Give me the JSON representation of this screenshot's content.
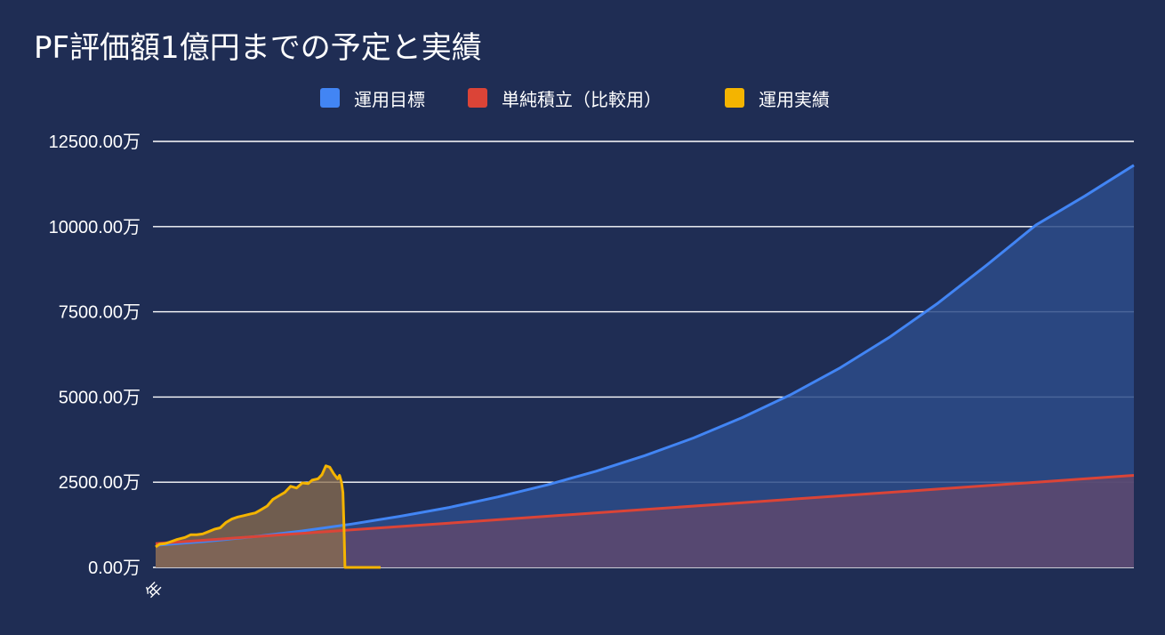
{
  "chart_data": {
    "type": "area",
    "title": "PF評価額1億円までの予定と実績",
    "xlabel": "",
    "ylabel": "",
    "x_tick_labels": [
      "年"
    ],
    "y_ticks": [
      "0.00万",
      "2500.00万",
      "5000.00万",
      "7500.00万",
      "10000.00万",
      "12500.00万"
    ],
    "ylim": [
      0,
      12500
    ],
    "y_unit": "万",
    "grid": true,
    "legend_position": "top",
    "series": [
      {
        "name": "運用目標",
        "color": "#4285f4",
        "fill": "#2d4c8a",
        "points": [
          [
            0,
            650
          ],
          [
            0.05,
            760
          ],
          [
            0.1,
            900
          ],
          [
            0.15,
            1070
          ],
          [
            0.2,
            1270
          ],
          [
            0.25,
            1500
          ],
          [
            0.3,
            1760
          ],
          [
            0.35,
            2070
          ],
          [
            0.4,
            2420
          ],
          [
            0.45,
            2820
          ],
          [
            0.5,
            3280
          ],
          [
            0.55,
            3800
          ],
          [
            0.6,
            4400
          ],
          [
            0.65,
            5080
          ],
          [
            0.7,
            5860
          ],
          [
            0.75,
            6750
          ],
          [
            0.8,
            7760
          ],
          [
            0.85,
            8880
          ],
          [
            0.9,
            10050
          ],
          [
            0.95,
            10900
          ],
          [
            1.0,
            11800
          ]
        ]
      },
      {
        "name": "単純積立（比較用）",
        "color": "#db4437",
        "fill": "#5e496e",
        "points": [
          [
            0,
            700
          ],
          [
            0.1,
            900
          ],
          [
            0.2,
            1100
          ],
          [
            0.3,
            1300
          ],
          [
            0.4,
            1500
          ],
          [
            0.5,
            1700
          ],
          [
            0.6,
            1900
          ],
          [
            0.7,
            2100
          ],
          [
            0.8,
            2300
          ],
          [
            0.9,
            2500
          ],
          [
            1.0,
            2700
          ]
        ]
      },
      {
        "name": "運用実績",
        "color": "#f4b400",
        "fill": "#8c6d4d",
        "points": [
          [
            0,
            600
          ],
          [
            0.004,
            680
          ],
          [
            0.01,
            700
          ],
          [
            0.016,
            760
          ],
          [
            0.022,
            820
          ],
          [
            0.03,
            880
          ],
          [
            0.036,
            960
          ],
          [
            0.042,
            960
          ],
          [
            0.048,
            980
          ],
          [
            0.054,
            1050
          ],
          [
            0.06,
            1120
          ],
          [
            0.066,
            1160
          ],
          [
            0.072,
            1320
          ],
          [
            0.078,
            1420
          ],
          [
            0.084,
            1480
          ],
          [
            0.09,
            1520
          ],
          [
            0.096,
            1560
          ],
          [
            0.102,
            1600
          ],
          [
            0.108,
            1700
          ],
          [
            0.114,
            1800
          ],
          [
            0.12,
            2000
          ],
          [
            0.126,
            2100
          ],
          [
            0.132,
            2200
          ],
          [
            0.138,
            2380
          ],
          [
            0.144,
            2330
          ],
          [
            0.15,
            2480
          ],
          [
            0.156,
            2460
          ],
          [
            0.16,
            2560
          ],
          [
            0.166,
            2600
          ],
          [
            0.17,
            2720
          ],
          [
            0.174,
            2980
          ],
          [
            0.178,
            2940
          ],
          [
            0.182,
            2750
          ],
          [
            0.186,
            2600
          ],
          [
            0.188,
            2700
          ],
          [
            0.19,
            2500
          ],
          [
            0.1915,
            2200
          ],
          [
            0.1925,
            1200
          ],
          [
            0.1935,
            0
          ],
          [
            0.23,
            0
          ]
        ]
      }
    ]
  }
}
